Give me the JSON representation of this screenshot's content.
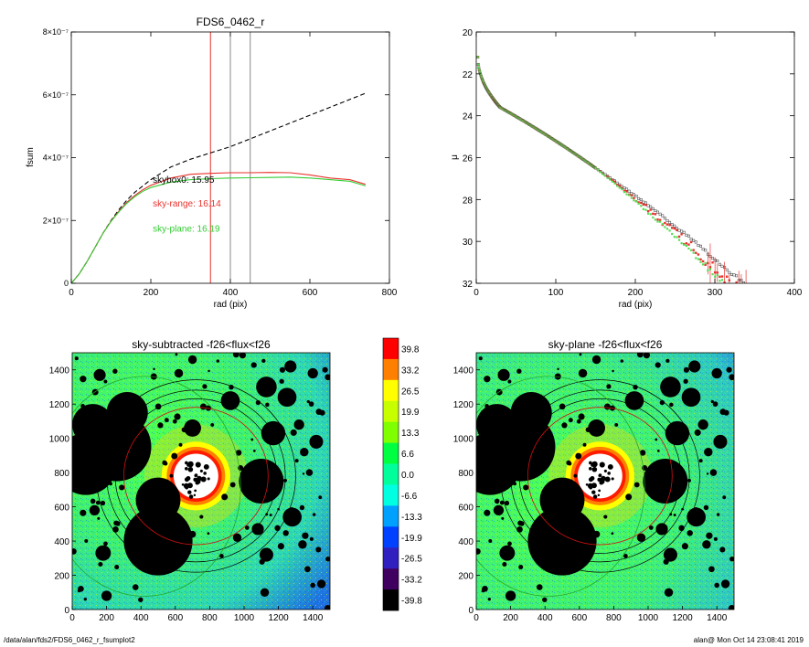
{
  "footer": {
    "left": "/data/alan/fds2/FDS6_0462_r_fsumplot2",
    "right": "alan@  Mon Oct 14 23:08:41 2019"
  },
  "chart_data": [
    {
      "type": "line",
      "title": "FDS6_0462_r",
      "xlabel": "rad (pix)",
      "ylabel": "fsum",
      "xlim": [
        0,
        800
      ],
      "ylim": [
        0,
        8e-07
      ],
      "xticks": [
        0,
        200,
        400,
        600,
        800
      ],
      "yticks": [
        {
          "v": 0,
          "label": "0"
        },
        {
          "v": 2e-07,
          "label": "2×10⁻⁷"
        },
        {
          "v": 4e-07,
          "label": "4×10⁻⁷"
        },
        {
          "v": 6e-07,
          "label": "6×10⁻⁷"
        },
        {
          "v": 8e-07,
          "label": "8×10⁻⁷"
        }
      ],
      "vlines": [
        {
          "x": 350,
          "color": "#e8322d"
        },
        {
          "x": 400,
          "color": "#888888"
        },
        {
          "x": 450,
          "color": "#888888"
        }
      ],
      "annotations": [
        {
          "text": "skybox0: 15.95",
          "x": 205,
          "y": 3.2e-07,
          "color": "#000000"
        },
        {
          "text": "sky-range: 16.14",
          "x": 205,
          "y": 2.45e-07,
          "color": "#e8322d"
        },
        {
          "text": "sky-plane: 16.19",
          "x": 205,
          "y": 1.65e-07,
          "color": "#33cc33"
        }
      ],
      "series": [
        {
          "style": "dashed",
          "color": "#000000",
          "x": [
            0,
            20,
            40,
            60,
            80,
            100,
            120,
            140,
            160,
            180,
            200,
            250,
            300,
            350,
            400,
            450,
            500,
            550,
            600,
            650,
            700,
            740
          ],
          "y": [
            0,
            3e-08,
            7e-08,
            1.15e-07,
            1.6e-07,
            2e-07,
            2.35e-07,
            2.65e-07,
            2.9e-07,
            3.1e-07,
            3.3e-07,
            3.7e-07,
            3.95e-07,
            4.15e-07,
            4.35e-07,
            4.6e-07,
            4.85e-07,
            5.1e-07,
            5.35e-07,
            5.6e-07,
            5.85e-07,
            6.05e-07
          ]
        },
        {
          "style": "solid",
          "color": "#e8322d",
          "x": [
            0,
            20,
            40,
            60,
            80,
            100,
            120,
            140,
            160,
            180,
            200,
            250,
            300,
            350,
            400,
            450,
            500,
            550,
            600,
            650,
            700,
            740
          ],
          "y": [
            0,
            3e-08,
            7e-08,
            1.15e-07,
            1.6e-07,
            1.98e-07,
            2.3e-07,
            2.58e-07,
            2.8e-07,
            2.98e-07,
            3.12e-07,
            3.35e-07,
            3.47e-07,
            3.5e-07,
            3.52e-07,
            3.52e-07,
            3.53e-07,
            3.52e-07,
            3.45e-07,
            3.35e-07,
            3.3e-07,
            3.15e-07
          ]
        },
        {
          "style": "solid",
          "color": "#33cc33",
          "x": [
            0,
            20,
            40,
            60,
            80,
            100,
            120,
            140,
            160,
            180,
            200,
            250,
            300,
            350,
            400,
            450,
            500,
            550,
            600,
            650,
            700,
            740
          ],
          "y": [
            0,
            3e-08,
            7e-08,
            1.15e-07,
            1.6e-07,
            1.97e-07,
            2.28e-07,
            2.55e-07,
            2.76e-07,
            2.93e-07,
            3.05e-07,
            3.22e-07,
            3.3e-07,
            3.33e-07,
            3.35e-07,
            3.36e-07,
            3.37e-07,
            3.38e-07,
            3.35e-07,
            3.3e-07,
            3.25e-07,
            3.1e-07
          ]
        }
      ]
    },
    {
      "type": "scatter",
      "xlabel": "rad (pix)",
      "ylabel": "μ",
      "xlim": [
        0,
        400
      ],
      "ylim": [
        32,
        20
      ],
      "xticks": [
        0,
        100,
        200,
        300,
        400
      ],
      "yticks": [
        20,
        22,
        24,
        26,
        28,
        30,
        32
      ],
      "profile": {
        "r0": 2,
        "mu0": 21.2,
        "knee_r": 30,
        "knee_mu": 23.6,
        "slope": 0.0213
      }
    },
    {
      "type": "heatmap",
      "title": "sky-subtracted -f26<flux<f26",
      "xlim": [
        0,
        1500
      ],
      "ylim": [
        0,
        1500
      ],
      "xticks": [
        0,
        200,
        400,
        600,
        800,
        1000,
        1200,
        1400
      ],
      "yticks": [
        0,
        200,
        400,
        600,
        800,
        1000,
        1200,
        1400
      ]
    },
    {
      "type": "heatmap",
      "title": "sky-plane -f26<flux<f26",
      "xlim": [
        0,
        1500
      ],
      "ylim": [
        0,
        1500
      ],
      "xticks": [
        0,
        200,
        400,
        600,
        800,
        1000,
        1200,
        1400
      ],
      "yticks": [
        0,
        200,
        400,
        600,
        800,
        1000,
        1200,
        1400
      ]
    }
  ],
  "colorbar": {
    "labels": [
      "39.8",
      "33.2",
      "26.5",
      "19.9",
      "13.3",
      "6.6",
      "0.0",
      "-6.6",
      "-13.3",
      "-19.9",
      "-26.5",
      "-33.2",
      "-39.8"
    ],
    "colors": [
      "#ff0000",
      "#ff8000",
      "#ffff00",
      "#c8ff00",
      "#80ff00",
      "#00ff40",
      "#00ff9a",
      "#00ffe0",
      "#00a0ff",
      "#0040ff",
      "#3020c0",
      "#400060",
      "#000000"
    ]
  },
  "masks": [
    {
      "x": 120,
      "y": 1080,
      "r": 120
    },
    {
      "x": 320,
      "y": 1150,
      "r": 120
    },
    {
      "x": 260,
      "y": 950,
      "r": 200
    },
    {
      "x": 80,
      "y": 850,
      "r": 180
    },
    {
      "x": 500,
      "y": 400,
      "r": 200
    },
    {
      "x": 500,
      "y": 640,
      "r": 130
    },
    {
      "x": 1100,
      "y": 750,
      "r": 130
    },
    {
      "x": 700,
      "y": 1060,
      "r": 50
    },
    {
      "x": 1130,
      "y": 1300,
      "r": 60
    },
    {
      "x": 920,
      "y": 1220,
      "r": 55
    },
    {
      "x": 1250,
      "y": 1240,
      "r": 55
    },
    {
      "x": 1170,
      "y": 1030,
      "r": 70
    },
    {
      "x": 1420,
      "y": 980,
      "r": 40
    },
    {
      "x": 1280,
      "y": 540,
      "r": 55
    },
    {
      "x": 1130,
      "y": 320,
      "r": 40
    },
    {
      "x": 1080,
      "y": 470,
      "r": 35
    },
    {
      "x": 180,
      "y": 330,
      "r": 45
    },
    {
      "x": 130,
      "y": 580,
      "r": 30
    },
    {
      "x": 1400,
      "y": 1380,
      "r": 30
    },
    {
      "x": 1270,
      "y": 1420,
      "r": 35
    },
    {
      "x": 620,
      "y": 1380,
      "r": 25
    },
    {
      "x": 700,
      "y": 1460,
      "r": 25
    },
    {
      "x": 160,
      "y": 1370,
      "r": 35
    },
    {
      "x": 1340,
      "y": 380,
      "r": 25
    },
    {
      "x": 960,
      "y": 420,
      "r": 25
    },
    {
      "x": 700,
      "y": 440,
      "r": 20
    },
    {
      "x": 1350,
      "y": 920,
      "r": 25
    },
    {
      "x": 1380,
      "y": 800,
      "r": 20
    },
    {
      "x": 200,
      "y": 80,
      "r": 30
    },
    {
      "x": 1450,
      "y": 150,
      "r": 25
    },
    {
      "x": 1120,
      "y": 100,
      "r": 25
    },
    {
      "x": 1320,
      "y": 1080,
      "r": 30
    }
  ]
}
